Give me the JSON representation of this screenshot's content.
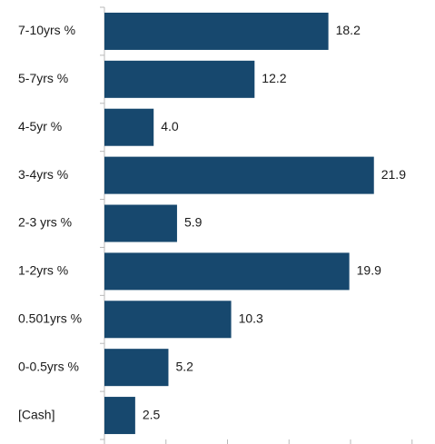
{
  "chart_data": {
    "type": "bar",
    "orientation": "horizontal",
    "categories": [
      "7-10yrs %",
      "5-7yrs %",
      "4-5yr %",
      "3-4yrs %",
      "2-3 yrs %",
      "1-2yrs %",
      "0.501yrs %",
      "0-0.5yrs %",
      "[Cash]"
    ],
    "values": [
      18.2,
      12.2,
      4.0,
      21.9,
      5.9,
      19.9,
      10.3,
      5.2,
      2.5
    ],
    "value_labels": [
      "18.2",
      "12.2",
      "4.0",
      "21.9",
      "5.9",
      "19.9",
      "10.3",
      "5.2",
      "2.5"
    ],
    "title": "",
    "xlabel": "",
    "ylabel": "",
    "xlim": [
      0,
      25
    ],
    "x_ticks": [
      0,
      5,
      10,
      15,
      20,
      25
    ],
    "grid": false,
    "legend": "none",
    "bar_color": "#17486e"
  }
}
